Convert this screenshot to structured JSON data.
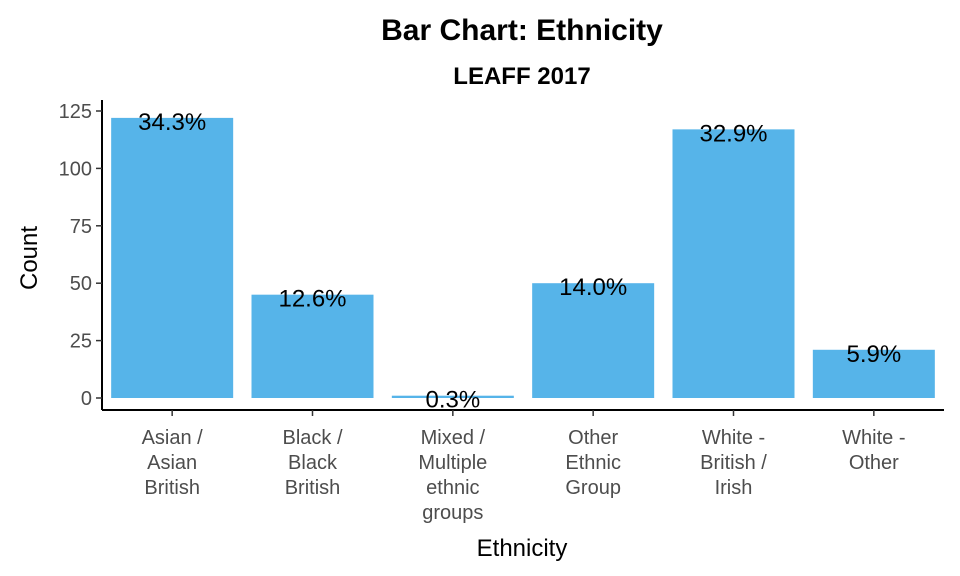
{
  "chart_data": {
    "type": "bar",
    "title": "Bar Chart: Ethnicity",
    "subtitle": "LEAFF 2017",
    "xlabel": "Ethnicity",
    "ylabel": "Count",
    "ylim": [
      0,
      125
    ],
    "yticks": [
      0,
      25,
      50,
      75,
      100,
      125
    ],
    "grid": false,
    "bar_color": "#56B4E9",
    "categories": [
      [
        "Asian /",
        "Asian",
        "British"
      ],
      [
        "Black /",
        "Black",
        "British"
      ],
      [
        "Mixed /",
        "Multiple",
        "ethnic",
        "groups"
      ],
      [
        "Other",
        "Ethnic",
        "Group"
      ],
      [
        "White -",
        "British /",
        "Irish"
      ],
      [
        "White -",
        "Other"
      ]
    ],
    "values": [
      122,
      45,
      1,
      50,
      117,
      21
    ],
    "labels": [
      "34.3%",
      "12.6%",
      "0.3%",
      "14.0%",
      "32.9%",
      "5.9%"
    ]
  }
}
